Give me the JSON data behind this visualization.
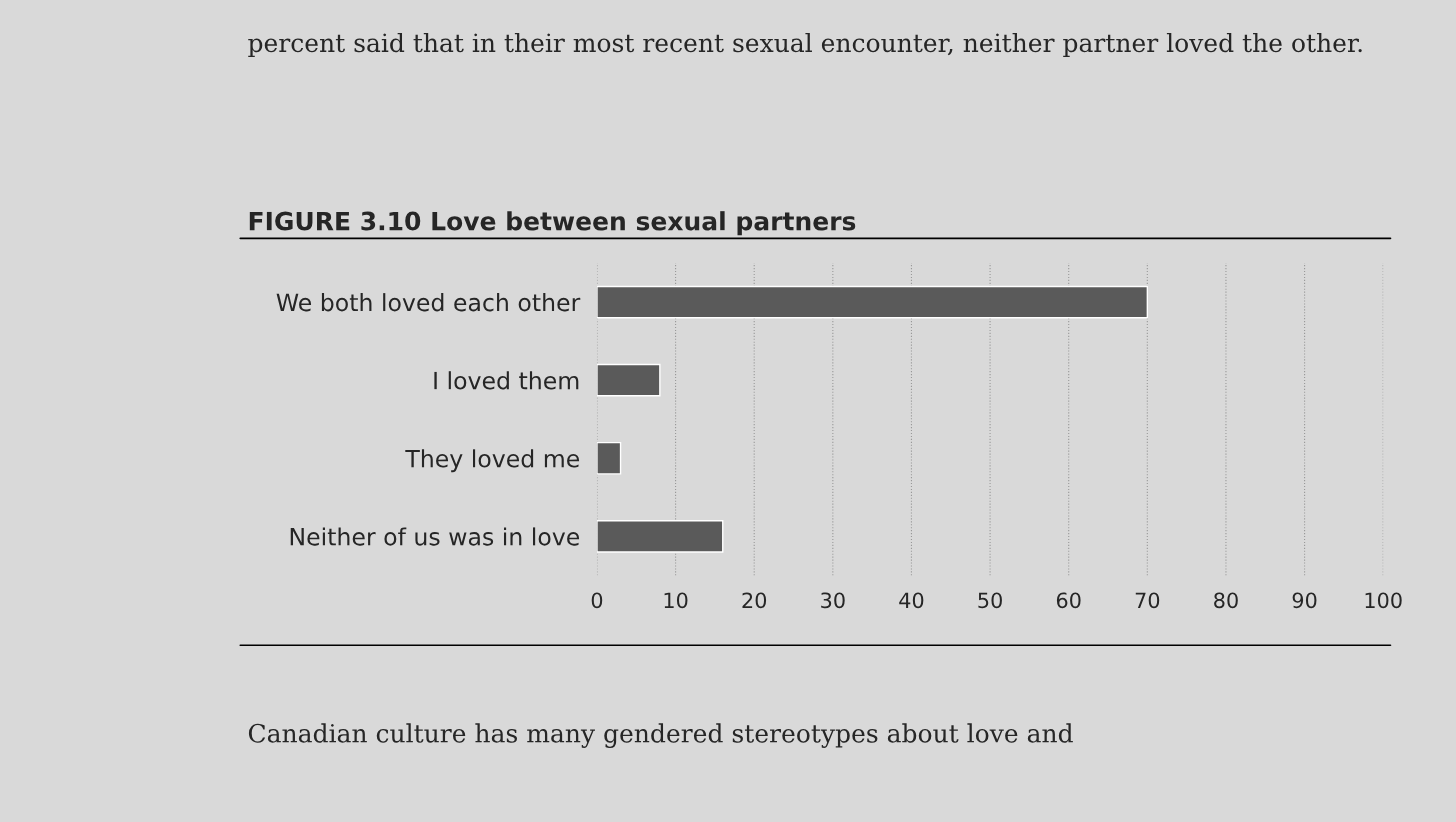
{
  "chart_data": {
    "type": "bar",
    "orientation": "horizontal",
    "title": "FIGURE 3.10 Love between sexual partners",
    "categories": [
      "We both loved each other",
      "I loved them",
      "They loved me",
      "Neither of us was in love"
    ],
    "values": [
      70,
      8,
      3,
      16
    ],
    "color": "#5a5a5a",
    "xlim": [
      0,
      100
    ],
    "xticks": [
      0,
      10,
      20,
      30,
      40,
      50,
      60,
      70,
      80,
      90,
      100
    ],
    "grid": "x",
    "annotations": [
      "percent said that in their most recent sexual encounter, neither partner loved the other.",
      "Canadian culture has many gendered stereotypes about love and"
    ]
  }
}
